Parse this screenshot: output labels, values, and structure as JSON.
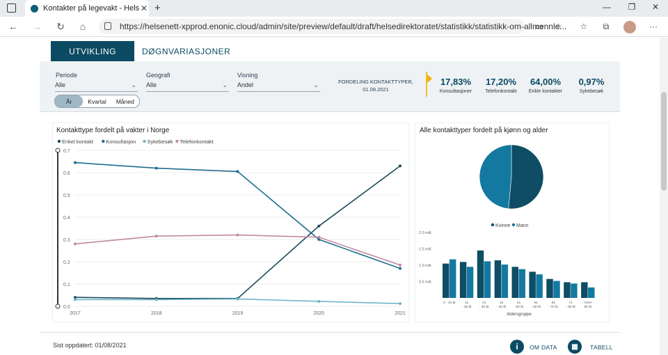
{
  "browser": {
    "tab_title": "Kontakter på legevakt - Helsedir",
    "url": "https://helsenett-xpprod.enonic.cloud/admin/site/preview/default/draft/helsedirektoratet/statistikk/statistikk-om-allmennle..."
  },
  "tabs": {
    "active": "UTVIKLING",
    "inactive": "DØGNVARIASJONER"
  },
  "filters": {
    "periode": {
      "label": "Periode",
      "value": "Alle"
    },
    "geografi": {
      "label": "Geografi",
      "value": "Alle"
    },
    "visning": {
      "label": "Visning",
      "value": "Andel"
    },
    "granularity": [
      "År",
      "Kvartal",
      "Måned"
    ],
    "granularity_selected": "År"
  },
  "distribution": {
    "title": "FORDELING KONTAKTTYPER,",
    "date": "01.08.2021",
    "kpis": [
      {
        "value": "17,83%",
        "label": "Konsultasjoner"
      },
      {
        "value": "17,20%",
        "label": "Telefonkontakt"
      },
      {
        "value": "64,00%",
        "label": "Enkle kontakter"
      },
      {
        "value": "0,97%",
        "label": "Sykebesøk"
      }
    ]
  },
  "footer": {
    "updated": "Sist oppdatert: 01/08/2021",
    "about_label": "OM DATA",
    "table_label": "TABELL"
  },
  "chart_data": [
    {
      "type": "line",
      "title": "Kontakttype fordelt på vakter i Norge",
      "x": [
        "2017",
        "2018",
        "2019",
        "2020",
        "2021"
      ],
      "ylim": [
        0,
        0.7
      ],
      "yticks": [
        "0.0",
        "0.1",
        "0.2",
        "0.3",
        "0.4",
        "0.5",
        "0.6",
        "0.7"
      ],
      "series": [
        {
          "name": "Enkel kontakt",
          "color": "#1b4a5a",
          "values": [
            0.04,
            0.035,
            0.035,
            0.36,
            0.63
          ]
        },
        {
          "name": "Konsultasjon",
          "color": "#1f6d8f",
          "values": [
            0.645,
            0.62,
            0.605,
            0.3,
            0.17
          ]
        },
        {
          "name": "Sykebesøk",
          "color": "#6fb3c8",
          "values": [
            0.03,
            0.03,
            0.033,
            0.022,
            0.012
          ]
        },
        {
          "name": "Telefonkontakt",
          "color": "#c08aa0",
          "values": [
            0.28,
            0.315,
            0.32,
            0.31,
            0.185
          ]
        }
      ]
    },
    {
      "type": "pie",
      "title": "Alle kontakttyper fordelt på kjønn og alder",
      "categories": [
        "Kvinne",
        "Mann"
      ],
      "values": [
        0.515,
        0.485
      ],
      "colors": [
        "#0e4d63",
        "#1479a0"
      ]
    },
    {
      "type": "bar",
      "xlabel": "Aldersgruppe",
      "ylim": [
        0,
        2.0
      ],
      "yticks": [
        "0.5 mill.",
        "1.0 mill.",
        "1.5 mill.",
        "2.0 mill."
      ],
      "categories": [
        "0 - 10 år",
        "11 - 20 år",
        "21 - 30 år",
        "31 - 40 år",
        "41 - 50 år",
        "51 - 60 år",
        "61 - 70 år",
        "71 - 80 år",
        "Over 80 år"
      ],
      "series": [
        {
          "name": "Kvinne",
          "color": "#0e4d63",
          "values": [
            1.05,
            1.1,
            1.45,
            1.15,
            0.95,
            0.8,
            0.58,
            0.48,
            0.48
          ]
        },
        {
          "name": "Mann",
          "color": "#1479a0",
          "values": [
            1.18,
            0.95,
            1.12,
            1.02,
            0.88,
            0.72,
            0.52,
            0.44,
            0.32
          ]
        }
      ]
    }
  ]
}
